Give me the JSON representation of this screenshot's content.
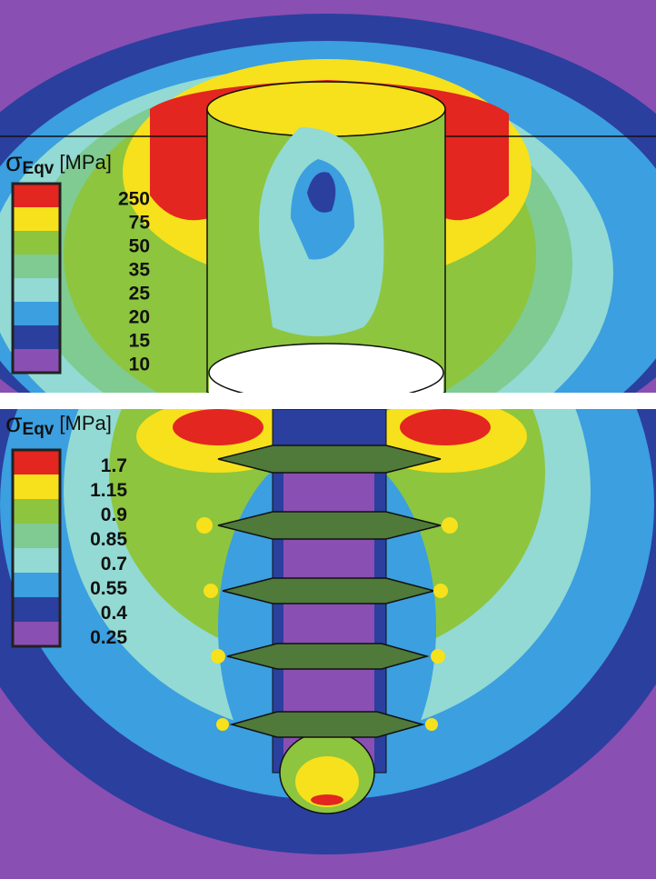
{
  "panels": [
    {
      "symbol": "σ",
      "subscript": "Eqv",
      "unit": "[MPa]",
      "legend": [
        {
          "label": "250",
          "color": "#e3261f"
        },
        {
          "label": "75",
          "color": "#f6e11c"
        },
        {
          "label": "50",
          "color": "#8dc53e"
        },
        {
          "label": "35",
          "color": "#7fcb91"
        },
        {
          "label": "25",
          "color": "#92dad3"
        },
        {
          "label": "20",
          "color": "#3b9fe0"
        },
        {
          "label": "15",
          "color": "#2b3f9f"
        },
        {
          "label": "10",
          "color": "#8a4fb2"
        }
      ]
    },
    {
      "symbol": "σ",
      "subscript": "Eqv",
      "unit": "[MPa]",
      "legend": [
        {
          "label": "1.7",
          "color": "#e3261f"
        },
        {
          "label": "1.15",
          "color": "#f6e11c"
        },
        {
          "label": "0.9",
          "color": "#8dc53e"
        },
        {
          "label": "0.85",
          "color": "#7fcb91"
        },
        {
          "label": "0.7",
          "color": "#92dad3"
        },
        {
          "label": "0.55",
          "color": "#3b9fe0"
        },
        {
          "label": "0.4",
          "color": "#2b3f9f"
        },
        {
          "label": "0.25",
          "color": "#8a4fb2"
        }
      ]
    }
  ]
}
